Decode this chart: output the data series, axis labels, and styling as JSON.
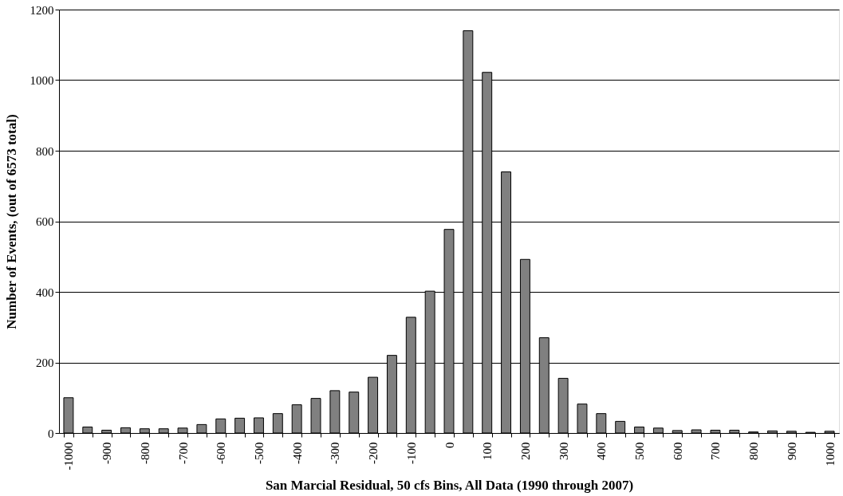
{
  "chart_data": {
    "type": "bar",
    "xlabel": "San Marcial Residual, 50 cfs Bins, All Data (1990 through 2007)",
    "ylabel": "Number of Events, (out of 6573 total)",
    "categories": [
      "-1000",
      null,
      "-900",
      null,
      "-800",
      null,
      "-700",
      null,
      "-600",
      null,
      "-500",
      null,
      "-400",
      null,
      "-300",
      null,
      "-200",
      null,
      "-100",
      null,
      "0",
      null,
      "100",
      null,
      "200",
      null,
      "300",
      null,
      "400",
      null,
      "500",
      null,
      "600",
      null,
      "700",
      null,
      "800",
      null,
      "900",
      null,
      "1000"
    ],
    "series": [
      {
        "color": "#808080",
        "values": [
          100,
          17,
          8,
          15,
          12,
          12,
          14,
          24,
          40,
          42,
          43,
          55,
          80,
          98,
          120,
          116,
          158,
          220,
          328,
          402,
          577,
          1140,
          1022,
          740,
          492,
          270,
          155,
          82,
          55,
          33,
          17,
          14,
          7,
          9,
          8,
          8,
          3,
          6,
          5,
          2,
          5
        ]
      }
    ],
    "ylim": [
      0,
      1200
    ],
    "yticks": [
      0,
      200,
      400,
      600,
      800,
      1000,
      1200
    ],
    "grid": "y",
    "legend": false
  }
}
